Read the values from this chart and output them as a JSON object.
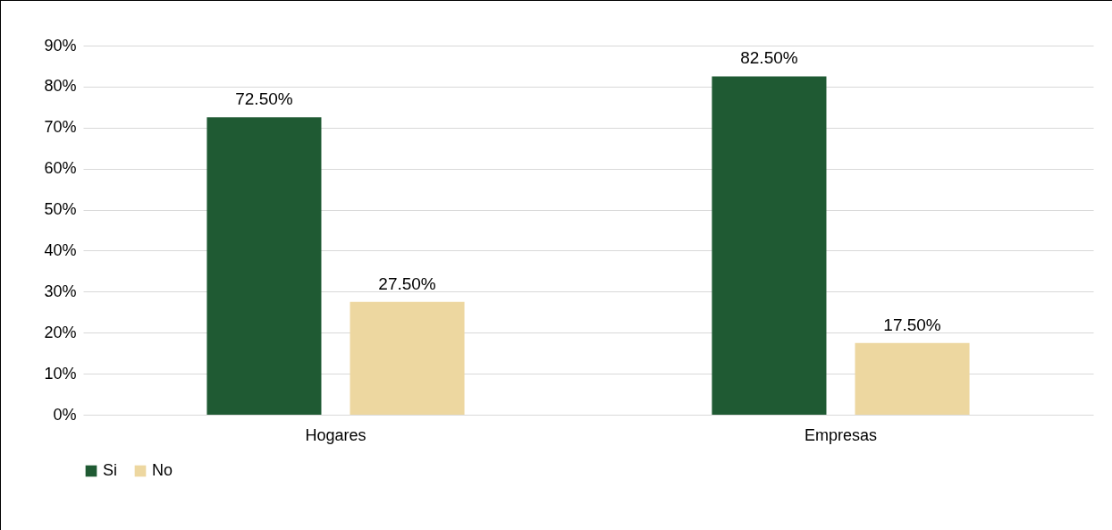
{
  "chart_data": {
    "type": "bar",
    "categories": [
      "Hogares",
      "Empresas"
    ],
    "series": [
      {
        "name": "Si",
        "color": "#1f5a33",
        "values": [
          72.5,
          82.5
        ],
        "value_labels": [
          "72.50%",
          "82.50%"
        ]
      },
      {
        "name": "No",
        "color": "#edd7a0",
        "values": [
          27.5,
          17.5
        ],
        "value_labels": [
          "27.50%",
          "17.50%"
        ]
      }
    ],
    "ylim": [
      0,
      90
    ],
    "yticks": [
      {
        "value": 0,
        "label": "0%"
      },
      {
        "value": 10,
        "label": "10%"
      },
      {
        "value": 20,
        "label": "20%"
      },
      {
        "value": 30,
        "label": "30%"
      },
      {
        "value": 40,
        "label": "40%"
      },
      {
        "value": 50,
        "label": "50%"
      },
      {
        "value": 60,
        "label": "60%"
      },
      {
        "value": 70,
        "label": "70%"
      },
      {
        "value": 80,
        "label": "80%"
      },
      {
        "value": 90,
        "label": "90%"
      }
    ],
    "grid": "y",
    "legend": "bottom"
  }
}
